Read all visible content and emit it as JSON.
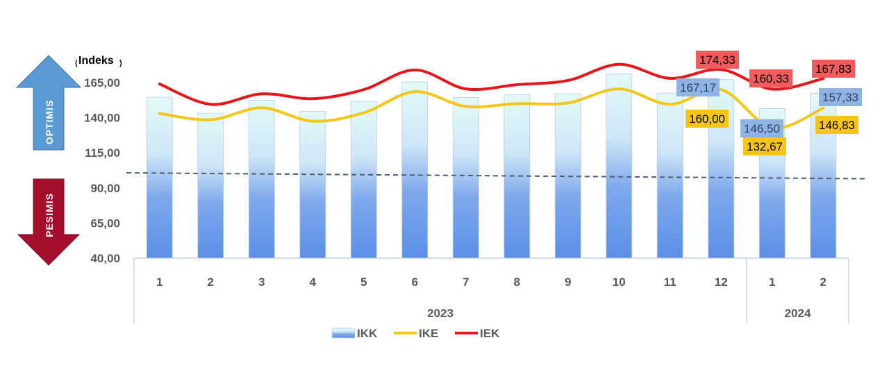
{
  "chart_data": {
    "type": "bar+line",
    "unit_label": "Indeks",
    "ylim": [
      40,
      175
    ],
    "yticks": [
      "40,00",
      "65,00",
      "90,00",
      "115,00",
      "140,00",
      "165,00"
    ],
    "ytick_values": [
      40,
      65,
      90,
      115,
      140,
      165
    ],
    "threshold": 100,
    "categories": [
      "1",
      "2",
      "3",
      "4",
      "5",
      "6",
      "7",
      "8",
      "9",
      "10",
      "11",
      "12",
      "1",
      "2"
    ],
    "year_groups": [
      {
        "label": "2023",
        "count": 12
      },
      {
        "label": "2024",
        "count": 2
      }
    ],
    "series": [
      {
        "name": "IKK",
        "kind": "bar",
        "color": "#5b8fe6",
        "values": [
          154.6,
          143.2,
          152.4,
          144.6,
          151.6,
          165.5,
          154.4,
          156.3,
          157.1,
          171.2,
          157.5,
          167.17,
          146.5,
          157.33
        ]
      },
      {
        "name": "IKE",
        "kind": "line",
        "color": "#f5c518",
        "values": [
          143.0,
          138.5,
          147.0,
          137.5,
          143.5,
          158.5,
          148.0,
          150.0,
          150.5,
          160.5,
          149.5,
          160.0,
          132.67,
          146.83
        ]
      },
      {
        "name": "IEK",
        "kind": "line",
        "color": "#e8161b",
        "values": [
          164.0,
          149.5,
          157.0,
          153.5,
          160.0,
          174.0,
          160.5,
          163.5,
          166.5,
          178.0,
          168.0,
          174.33,
          160.33,
          167.83
        ]
      }
    ],
    "data_labels": [
      {
        "series": "IEK",
        "index": 11,
        "text": "174,33",
        "color": "#f15b5b",
        "text_color": "#000000"
      },
      {
        "series": "IKK",
        "index": 11,
        "text": "167,17",
        "color": "#8eb4e3",
        "text_color": "#2a3d5c"
      },
      {
        "series": "IKE",
        "index": 11,
        "text": "160,00",
        "color": "#f5c518",
        "text_color": "#000000"
      },
      {
        "series": "IEK",
        "index": 12,
        "text": "160,33",
        "color": "#f15b5b",
        "text_color": "#000000"
      },
      {
        "series": "IKK",
        "index": 12,
        "text": "146,50",
        "color": "#8eb4e3",
        "text_color": "#2a3d5c"
      },
      {
        "series": "IKE",
        "index": 12,
        "text": "132,67",
        "color": "#f5c518",
        "text_color": "#000000"
      },
      {
        "series": "IEK",
        "index": 13,
        "text": "167,83",
        "color": "#f15b5b",
        "text_color": "#000000"
      },
      {
        "series": "IKK",
        "index": 13,
        "text": "157,33",
        "color": "#8eb4e3",
        "text_color": "#2a3d5c"
      },
      {
        "series": "IKE",
        "index": 13,
        "text": "146,83",
        "color": "#f5c518",
        "text_color": "#000000"
      }
    ],
    "legend": [
      "IKK",
      "IKE",
      "IEK"
    ],
    "legend_position": "bottom",
    "annotations": {
      "optimis": "OPTIMIS",
      "pesimis": "PESIMIS",
      "optimis_color": "#5b9bd5",
      "pesimis_color": "#a50f2d"
    },
    "grid": false
  }
}
